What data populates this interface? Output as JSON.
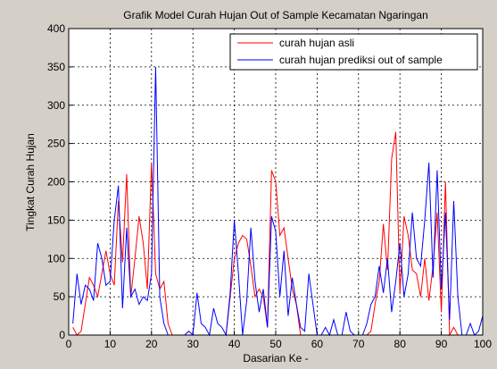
{
  "chart_data": {
    "type": "line",
    "title": "Grafik Model Curah Hujan Out of Sample Kecamatan Ngaringan",
    "xlabel": "Dasarian Ke -",
    "ylabel": "Tingkat Curah Hujan",
    "x": [
      1,
      2,
      3,
      4,
      5,
      6,
      7,
      8,
      9,
      10,
      11,
      12,
      13,
      14,
      15,
      16,
      17,
      18,
      19,
      20,
      21,
      22,
      23,
      24,
      25,
      26,
      27,
      28,
      29,
      30,
      31,
      32,
      33,
      34,
      35,
      36,
      37,
      38,
      39,
      40,
      41,
      42,
      43,
      44,
      45,
      46,
      47,
      48,
      49,
      50,
      51,
      52,
      53,
      54,
      55,
      56,
      57,
      58,
      59,
      60,
      61,
      62,
      63,
      64,
      65,
      66,
      67,
      68,
      69,
      70,
      71,
      72,
      73,
      74,
      75,
      76,
      77,
      78,
      79,
      80,
      81,
      82,
      83,
      84,
      85,
      86,
      87,
      88,
      89,
      90,
      91,
      92,
      93,
      94,
      95,
      96,
      97,
      98,
      99,
      100
    ],
    "series": [
      {
        "name": "curah hujan asli",
        "color": "#ff0000",
        "values": [
          10,
          0,
          5,
          40,
          75,
          65,
          50,
          80,
          110,
          80,
          65,
          175,
          95,
          210,
          50,
          100,
          155,
          120,
          60,
          225,
          80,
          60,
          70,
          15,
          0,
          0,
          0,
          0,
          0,
          0,
          0,
          0,
          0,
          0,
          0,
          0,
          0,
          0,
          50,
          100,
          120,
          130,
          125,
          90,
          50,
          60,
          50,
          10,
          215,
          200,
          130,
          140,
          100,
          60,
          40,
          0,
          0,
          0,
          0,
          0,
          0,
          0,
          0,
          0,
          0,
          0,
          0,
          0,
          0,
          0,
          0,
          0,
          5,
          40,
          70,
          145,
          85,
          230,
          265,
          55,
          155,
          130,
          85,
          80,
          50,
          100,
          45,
          90,
          160,
          30,
          200,
          0,
          10,
          0,
          0,
          0,
          0,
          0,
          0,
          0
        ]
      },
      {
        "name": "curah hujan prediksi out of sample",
        "color": "#0000ff",
        "values": [
          15,
          80,
          40,
          65,
          60,
          45,
          120,
          100,
          65,
          70,
          150,
          195,
          35,
          140,
          50,
          60,
          40,
          50,
          45,
          80,
          350,
          50,
          15,
          0,
          0,
          0,
          0,
          0,
          5,
          0,
          55,
          15,
          10,
          0,
          35,
          15,
          10,
          0,
          55,
          150,
          80,
          0,
          45,
          140,
          70,
          30,
          60,
          10,
          155,
          135,
          50,
          110,
          25,
          75,
          40,
          10,
          5,
          80,
          40,
          0,
          0,
          10,
          0,
          20,
          0,
          0,
          30,
          5,
          0,
          0,
          0,
          15,
          40,
          50,
          90,
          55,
          100,
          30,
          70,
          120,
          50,
          80,
          160,
          100,
          90,
          150,
          225,
          75,
          215,
          60,
          160,
          20,
          175,
          50,
          0,
          0,
          15,
          0,
          5,
          25
        ]
      }
    ],
    "xlim": [
      0,
      100
    ],
    "xticks": [
      0,
      10,
      20,
      30,
      40,
      50,
      60,
      70,
      80,
      90,
      100
    ],
    "ylim": [
      0,
      400
    ],
    "yticks": [
      0,
      50,
      100,
      150,
      200,
      250,
      300,
      350,
      400
    ],
    "grid": true,
    "legend": "upper right"
  }
}
